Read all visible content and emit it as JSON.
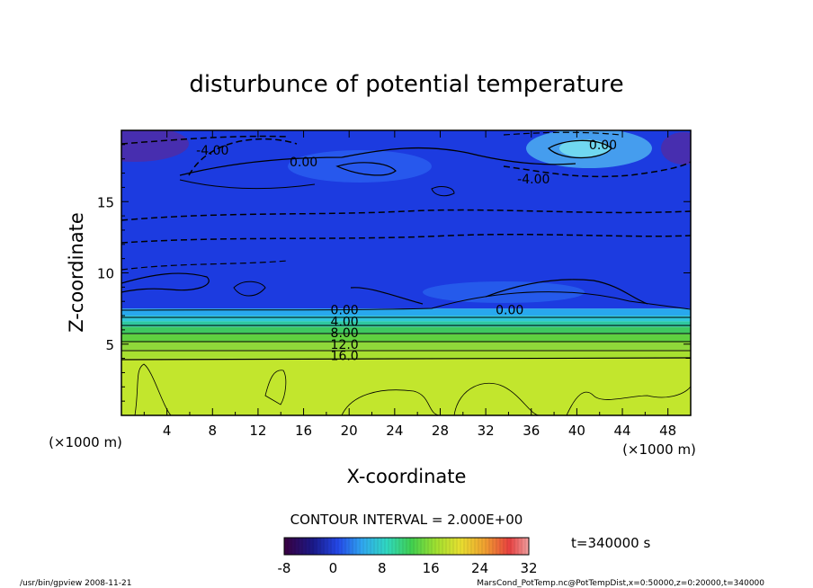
{
  "chart_data": {
    "type": "heatmap",
    "title": "disturbunce of potential temperature",
    "xlabel": "X-coordinate",
    "ylabel": "Z-coordinate",
    "x_unit": "(×1000 m)",
    "z_unit": "(×1000 m)",
    "xlim": [
      0,
      50
    ],
    "ylim": [
      0,
      20
    ],
    "x_ticks": [
      "4",
      "8",
      "12",
      "16",
      "20",
      "24",
      "28",
      "32",
      "36",
      "40",
      "44",
      "48"
    ],
    "y_ticks": [
      "5",
      "10",
      "15"
    ],
    "contour_interval_text": "CONTOUR INTERVAL = 2.000E+00",
    "time_label": "t=340000  s",
    "colorbar": {
      "min": -8,
      "max": 32,
      "ticks": [
        "-8",
        "0",
        "8",
        "16",
        "24",
        "32"
      ]
    },
    "contour_labels": [
      {
        "text": "0.00",
        "x": 19.6,
        "z": 7.4
      },
      {
        "text": "4.00",
        "x": 19.6,
        "z": 6.6
      },
      {
        "text": "8.00",
        "x": 19.6,
        "z": 5.8
      },
      {
        "text": "12.0",
        "x": 19.6,
        "z": 5.0
      },
      {
        "text": "16.0",
        "x": 19.6,
        "z": 4.2
      },
      {
        "text": "0.00",
        "x": 34.1,
        "z": 7.4
      },
      {
        "text": "-4.00",
        "x": 8.0,
        "z": 18.6
      },
      {
        "text": "0.00",
        "x": 16.0,
        "z": 17.8
      },
      {
        "text": "-4.00",
        "x": 36.2,
        "z": 16.6
      },
      {
        "text": "0.00",
        "x": 42.3,
        "z": 19.0
      }
    ],
    "bands": [
      {
        "z0": 0,
        "z1": 4.0,
        "color": "#c2e62d"
      },
      {
        "z0": 4.0,
        "z1": 4.6,
        "color": "#a8e030"
      },
      {
        "z0": 4.6,
        "z1": 5.2,
        "color": "#8fd83a"
      },
      {
        "z0": 5.2,
        "z1": 5.7,
        "color": "#5fd040"
      },
      {
        "z0": 5.7,
        "z1": 6.2,
        "color": "#3fc860"
      },
      {
        "z0": 6.2,
        "z1": 6.6,
        "color": "#2fc8a0"
      },
      {
        "z0": 6.6,
        "z1": 7.0,
        "color": "#30c8d8"
      },
      {
        "z0": 7.0,
        "z1": 7.5,
        "color": "#28a8ee"
      },
      {
        "z0": 7.5,
        "z1": 20,
        "color": "#1c3be0"
      }
    ],
    "colors": {
      "low": "#1a2ab8",
      "mid": "#2a60f0",
      "high_blob": "#5ac8f0",
      "dark_corner": "#6a2a9a"
    }
  },
  "footer": {
    "left": "/usr/bin/gpview   2008-11-21",
    "right": "MarsCond_PotTemp.nc@PotTempDist,x=0:50000,z=0:20000,t=340000"
  }
}
